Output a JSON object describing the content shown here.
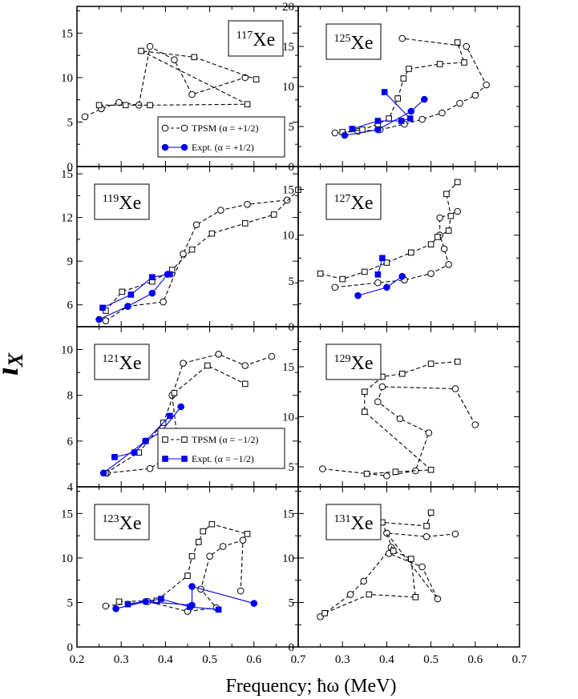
{
  "figure": {
    "xlabel": "Frequency; ħω (MeV)",
    "ylabel_main": "i",
    "ylabel_sub": "X"
  },
  "chart_data": [
    {
      "type": "line",
      "panel": "117Xe",
      "label_mass": "117",
      "label_elem": "Xe",
      "xlim": [
        0.2,
        0.7
      ],
      "ylim": [
        0,
        18
      ],
      "yticks": [
        0,
        5,
        10,
        15
      ],
      "legend": [
        {
          "text": "TPSM (α = +1/2)",
          "marker": "circle-open",
          "color": "#000000",
          "dashed": true
        },
        {
          "text": "Expt. (α = +1/2)",
          "marker": "circle-filled",
          "color": "#0000ee",
          "dashed": false
        }
      ],
      "series": [
        {
          "style": "tpsm-circle",
          "x": [
            0.218,
            0.255,
            0.295,
            0.34,
            0.365,
            0.42,
            0.46,
            0.58
          ],
          "y": [
            5.6,
            6.5,
            7.2,
            6.9,
            13.5,
            12.0,
            8.1,
            10.0
          ]
        },
        {
          "style": "tpsm-square",
          "x": [
            0.25,
            0.31,
            0.365,
            0.585,
            0.345,
            0.465,
            0.605
          ],
          "y": [
            6.9,
            6.9,
            6.9,
            7.0,
            13.0,
            12.3,
            9.8
          ]
        }
      ]
    },
    {
      "type": "line",
      "panel": "125Xe",
      "label_mass": "125",
      "label_elem": "Xe",
      "xlim": [
        0.2,
        0.7
      ],
      "ylim": [
        0,
        20
      ],
      "yticks": [
        0,
        5,
        10,
        15,
        20
      ],
      "series": [
        {
          "style": "tpsm-circle",
          "x": [
            0.283,
            0.335,
            0.385,
            0.44,
            0.48,
            0.525,
            0.565,
            0.6,
            0.625,
            0.58,
            0.435
          ],
          "y": [
            4.2,
            4.4,
            4.6,
            5.3,
            5.9,
            6.7,
            7.9,
            8.9,
            10.2,
            15.0,
            16.0
          ]
        },
        {
          "style": "tpsm-square",
          "x": [
            0.3,
            0.345,
            0.38,
            0.405,
            0.425,
            0.438,
            0.45,
            0.52,
            0.575,
            0.56
          ],
          "y": [
            4.3,
            4.6,
            5.3,
            6.0,
            8.5,
            11.0,
            12.2,
            12.8,
            13.0,
            15.5
          ]
        },
        {
          "style": "expt-circle",
          "x": [
            0.305,
            0.38,
            0.455,
            0.485
          ],
          "y": [
            3.9,
            4.6,
            6.9,
            8.4
          ]
        },
        {
          "style": "expt-square",
          "x": [
            0.322,
            0.38,
            0.433,
            0.453,
            0.395
          ],
          "y": [
            4.7,
            5.7,
            5.7,
            6.0,
            9.3
          ]
        }
      ]
    },
    {
      "type": "line",
      "panel": "119Xe",
      "label_mass": "119",
      "label_elem": "Xe",
      "xlim": [
        0.2,
        0.7
      ],
      "ylim": [
        4.5,
        15.5
      ],
      "yticks": [
        6,
        9,
        12,
        15
      ],
      "series": [
        {
          "style": "tpsm-circle",
          "x": [
            0.265,
            0.315,
            0.395,
            0.44,
            0.47,
            0.525,
            0.585,
            0.675
          ],
          "y": [
            4.9,
            5.9,
            6.2,
            9.5,
            11.5,
            12.5,
            12.9,
            13.2
          ]
        },
        {
          "style": "tpsm-square",
          "x": [
            0.265,
            0.302,
            0.37,
            0.415,
            0.46,
            0.505,
            0.58,
            0.645,
            0.7
          ],
          "y": [
            5.6,
            6.9,
            7.6,
            8.4,
            9.8,
            10.9,
            11.6,
            12.2,
            13.9
          ]
        },
        {
          "style": "expt-circle",
          "x": [
            0.25,
            0.315,
            0.37,
            0.405
          ],
          "y": [
            5.0,
            5.9,
            6.8,
            8.1
          ]
        },
        {
          "style": "expt-square",
          "x": [
            0.258,
            0.322,
            0.37,
            0.41
          ],
          "y": [
            5.8,
            6.7,
            7.9,
            8.1
          ]
        }
      ]
    },
    {
      "type": "line",
      "panel": "127Xe",
      "label_mass": "127",
      "label_elem": "Xe",
      "xlim": [
        0.2,
        0.7
      ],
      "ylim": [
        0,
        17.5
      ],
      "yticks": [
        0,
        5,
        10,
        15
      ],
      "series": [
        {
          "style": "tpsm-circle",
          "x": [
            0.283,
            0.38,
            0.44,
            0.5,
            0.54,
            0.53,
            0.52,
            0.52,
            0.56
          ],
          "y": [
            4.3,
            4.8,
            5.1,
            5.8,
            6.8,
            8.5,
            10.0,
            11.9,
            12.6
          ]
        },
        {
          "style": "tpsm-square",
          "x": [
            0.25,
            0.3,
            0.35,
            0.4,
            0.455,
            0.5,
            0.515,
            0.54,
            0.545,
            0.535,
            0.56
          ],
          "y": [
            5.8,
            5.2,
            6.0,
            7.0,
            8.1,
            9.0,
            9.8,
            10.5,
            12.1,
            14.5,
            15.8
          ]
        },
        {
          "style": "expt-circle",
          "x": [
            0.335,
            0.4,
            0.435
          ],
          "y": [
            3.4,
            4.3,
            5.5
          ]
        },
        {
          "style": "expt-square",
          "x": [
            0.38,
            0.39
          ],
          "y": [
            5.7,
            7.5
          ]
        }
      ]
    },
    {
      "type": "line",
      "panel": "121Xe",
      "label_mass": "121",
      "label_elem": "Xe",
      "xlim": [
        0.2,
        0.7
      ],
      "ylim": [
        4,
        11
      ],
      "yticks": [
        4,
        6,
        8,
        10
      ],
      "legend": [
        {
          "text": "TPSM (α = −1/2)",
          "marker": "square-open",
          "color": "#000000",
          "dashed": true
        },
        {
          "text": "Expt. (α = −1/2)",
          "marker": "square-filled",
          "color": "#0000ee",
          "dashed": false
        }
      ],
      "series": [
        {
          "style": "tpsm-circle",
          "x": [
            0.268,
            0.365,
            0.43,
            0.415,
            0.44,
            0.52,
            0.58,
            0.64
          ],
          "y": [
            4.6,
            4.8,
            5.6,
            8.0,
            9.4,
            9.8,
            9.3,
            9.7
          ]
        },
        {
          "style": "tpsm-square",
          "x": [
            0.265,
            0.34,
            0.395,
            0.42,
            0.495,
            0.58
          ],
          "y": [
            4.6,
            5.5,
            6.8,
            8.1,
            9.3,
            8.5
          ]
        },
        {
          "style": "expt-circle",
          "x": [
            0.26,
            0.355,
            0.39,
            0.435
          ],
          "y": [
            4.6,
            6.0,
            6.4,
            7.5
          ]
        },
        {
          "style": "expt-square",
          "x": [
            0.285,
            0.33,
            0.355,
            0.41
          ],
          "y": [
            5.3,
            5.5,
            6.0,
            7.1
          ]
        }
      ]
    },
    {
      "type": "line",
      "panel": "129Xe",
      "label_mass": "129",
      "label_elem": "Xe",
      "xlim": [
        0.2,
        0.7
      ],
      "ylim": [
        3,
        19
      ],
      "yticks": [
        5,
        10,
        15
      ],
      "series": [
        {
          "style": "tpsm-circle",
          "x": [
            0.255,
            0.4,
            0.465,
            0.495,
            0.43,
            0.38,
            0.39,
            0.555,
            0.6
          ],
          "y": [
            4.8,
            4.1,
            4.6,
            8.4,
            9.8,
            11.5,
            13.0,
            12.8,
            9.2
          ]
        },
        {
          "style": "tpsm-square",
          "x": [
            0.355,
            0.42,
            0.5,
            0.35,
            0.35,
            0.39,
            0.435,
            0.5,
            0.56
          ],
          "y": [
            4.3,
            4.5,
            4.7,
            10.5,
            12.5,
            14.0,
            14.3,
            15.3,
            15.5
          ]
        }
      ]
    },
    {
      "type": "line",
      "panel": "123Xe",
      "label_mass": "123",
      "label_elem": "Xe",
      "xlim": [
        0.2,
        0.7
      ],
      "ylim": [
        0,
        18
      ],
      "yticks": [
        0,
        5,
        10,
        15
      ],
      "series": [
        {
          "style": "tpsm-circle",
          "x": [
            0.265,
            0.36,
            0.45,
            0.515,
            0.48,
            0.5,
            0.53,
            0.575,
            0.57
          ],
          "y": [
            4.6,
            5.1,
            4.0,
            4.4,
            6.5,
            10.2,
            11.3,
            12.0,
            6.3
          ]
        },
        {
          "style": "tpsm-square",
          "x": [
            0.295,
            0.38,
            0.45,
            0.46,
            0.475,
            0.485,
            0.505,
            0.585
          ],
          "y": [
            5.1,
            5.2,
            8.0,
            10.2,
            11.8,
            13.0,
            13.8,
            12.7
          ]
        },
        {
          "style": "expt-circle",
          "x": [
            0.288,
            0.355,
            0.46,
            0.46,
            0.6
          ],
          "y": [
            4.3,
            5.1,
            4.7,
            6.8,
            4.9
          ]
        },
        {
          "style": "expt-square",
          "x": [
            0.315,
            0.39,
            0.455,
            0.52
          ],
          "y": [
            4.8,
            5.4,
            4.5,
            4.2
          ]
        }
      ]
    },
    {
      "type": "line",
      "panel": "131Xe",
      "label_mass": "131",
      "label_elem": "Xe",
      "xlim": [
        0.2,
        0.7
      ],
      "ylim": [
        0,
        18
      ],
      "yticks": [
        0,
        5,
        10,
        15
      ],
      "series": [
        {
          "style": "tpsm-circle",
          "x": [
            0.25,
            0.318,
            0.348,
            0.41,
            0.405,
            0.48,
            0.515,
            0.4,
            0.49,
            0.555
          ],
          "y": [
            3.4,
            5.9,
            7.4,
            11.2,
            10.5,
            9.0,
            5.4,
            12.8,
            12.4,
            12.7
          ]
        },
        {
          "style": "tpsm-square",
          "x": [
            0.26,
            0.36,
            0.465,
            0.455,
            0.415,
            0.39,
            0.49,
            0.5
          ],
          "y": [
            3.8,
            5.9,
            5.6,
            9.9,
            10.8,
            14.0,
            13.6,
            15.1
          ]
        }
      ]
    }
  ]
}
